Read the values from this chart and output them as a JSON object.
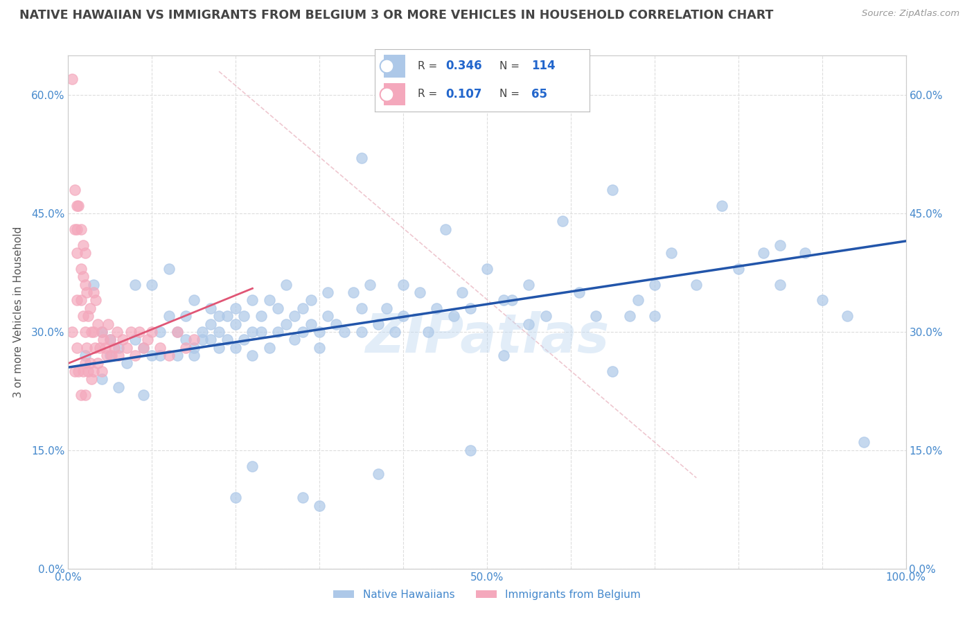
{
  "title": "NATIVE HAWAIIAN VS IMMIGRANTS FROM BELGIUM 3 OR MORE VEHICLES IN HOUSEHOLD CORRELATION CHART",
  "source": "Source: ZipAtlas.com",
  "ylabel": "3 or more Vehicles in Household",
  "xmin": 0.0,
  "xmax": 1.0,
  "ymin": 0.0,
  "ymax": 0.65,
  "xtick_pos": [
    0.0,
    0.1,
    0.2,
    0.3,
    0.4,
    0.5,
    0.6,
    0.7,
    0.8,
    0.9,
    1.0
  ],
  "xtick_labels": [
    "0.0%",
    "",
    "",
    "",
    "",
    "50.0%",
    "",
    "",
    "",
    "",
    "100.0%"
  ],
  "ytick_pos": [
    0.0,
    0.15,
    0.3,
    0.45,
    0.6
  ],
  "ytick_labels": [
    "0.0%",
    "15.0%",
    "30.0%",
    "45.0%",
    "60.0%"
  ],
  "blue_R": "0.346",
  "blue_N": "114",
  "pink_R": "0.107",
  "pink_N": "65",
  "blue_color": "#adc8e8",
  "pink_color": "#f4a8bc",
  "blue_line_color": "#2255aa",
  "pink_line_color": "#e05575",
  "dashed_line_color": "#e8b0bc",
  "watermark": "ZIPatlas",
  "background_color": "#ffffff",
  "grid_color": "#dddddd",
  "title_color": "#444444",
  "axis_label_color": "#555555",
  "tick_label_color": "#4488cc",
  "legend_label_color": "#2266cc",
  "blue_line_x0": 0.0,
  "blue_line_y0": 0.255,
  "blue_line_x1": 1.0,
  "blue_line_y1": 0.415,
  "pink_line_x0": 0.0,
  "pink_line_y0": 0.26,
  "pink_line_x1": 0.22,
  "pink_line_y1": 0.355,
  "dashed_line_x0": 0.18,
  "dashed_line_y0": 0.63,
  "dashed_line_x1": 0.75,
  "dashed_line_y1": 0.115,
  "blue_scatter_x": [
    0.02,
    0.03,
    0.04,
    0.04,
    0.05,
    0.05,
    0.06,
    0.06,
    0.07,
    0.08,
    0.08,
    0.09,
    0.09,
    0.1,
    0.1,
    0.11,
    0.11,
    0.12,
    0.12,
    0.13,
    0.13,
    0.14,
    0.14,
    0.15,
    0.15,
    0.15,
    0.16,
    0.16,
    0.17,
    0.17,
    0.17,
    0.18,
    0.18,
    0.18,
    0.19,
    0.19,
    0.2,
    0.2,
    0.2,
    0.21,
    0.21,
    0.22,
    0.22,
    0.22,
    0.23,
    0.23,
    0.24,
    0.24,
    0.25,
    0.25,
    0.26,
    0.26,
    0.27,
    0.27,
    0.28,
    0.28,
    0.29,
    0.29,
    0.3,
    0.3,
    0.31,
    0.31,
    0.32,
    0.33,
    0.34,
    0.35,
    0.35,
    0.36,
    0.37,
    0.38,
    0.39,
    0.4,
    0.4,
    0.42,
    0.43,
    0.44,
    0.45,
    0.46,
    0.47,
    0.48,
    0.5,
    0.52,
    0.53,
    0.55,
    0.57,
    0.59,
    0.61,
    0.63,
    0.65,
    0.68,
    0.7,
    0.72,
    0.75,
    0.78,
    0.8,
    0.83,
    0.85,
    0.88,
    0.9,
    0.93,
    0.95,
    0.35,
    0.48,
    0.65,
    0.28,
    0.2,
    0.3,
    0.55,
    0.7,
    0.85,
    0.22,
    0.37,
    0.52,
    0.67
  ],
  "blue_scatter_y": [
    0.27,
    0.36,
    0.24,
    0.3,
    0.27,
    0.29,
    0.23,
    0.28,
    0.26,
    0.36,
    0.29,
    0.22,
    0.28,
    0.36,
    0.27,
    0.3,
    0.27,
    0.32,
    0.38,
    0.3,
    0.27,
    0.32,
    0.29,
    0.34,
    0.28,
    0.27,
    0.3,
    0.29,
    0.33,
    0.31,
    0.29,
    0.32,
    0.3,
    0.28,
    0.29,
    0.32,
    0.31,
    0.28,
    0.33,
    0.29,
    0.32,
    0.3,
    0.34,
    0.27,
    0.3,
    0.32,
    0.28,
    0.34,
    0.3,
    0.33,
    0.31,
    0.36,
    0.32,
    0.29,
    0.3,
    0.33,
    0.31,
    0.34,
    0.3,
    0.28,
    0.32,
    0.35,
    0.31,
    0.3,
    0.35,
    0.3,
    0.33,
    0.36,
    0.31,
    0.33,
    0.3,
    0.32,
    0.36,
    0.35,
    0.3,
    0.33,
    0.43,
    0.32,
    0.35,
    0.33,
    0.38,
    0.34,
    0.34,
    0.36,
    0.32,
    0.44,
    0.35,
    0.32,
    0.48,
    0.34,
    0.36,
    0.4,
    0.36,
    0.46,
    0.38,
    0.4,
    0.36,
    0.4,
    0.34,
    0.32,
    0.16,
    0.52,
    0.15,
    0.25,
    0.09,
    0.09,
    0.08,
    0.31,
    0.32,
    0.41,
    0.13,
    0.12,
    0.27,
    0.32
  ],
  "pink_scatter_x": [
    0.005,
    0.005,
    0.008,
    0.008,
    0.008,
    0.01,
    0.01,
    0.01,
    0.01,
    0.01,
    0.012,
    0.012,
    0.015,
    0.015,
    0.015,
    0.015,
    0.018,
    0.018,
    0.018,
    0.018,
    0.02,
    0.02,
    0.02,
    0.02,
    0.02,
    0.022,
    0.022,
    0.024,
    0.024,
    0.026,
    0.026,
    0.028,
    0.028,
    0.03,
    0.03,
    0.03,
    0.032,
    0.033,
    0.035,
    0.035,
    0.038,
    0.04,
    0.04,
    0.042,
    0.044,
    0.046,
    0.048,
    0.05,
    0.052,
    0.055,
    0.058,
    0.06,
    0.065,
    0.07,
    0.075,
    0.08,
    0.085,
    0.09,
    0.095,
    0.1,
    0.11,
    0.12,
    0.13,
    0.14,
    0.15
  ],
  "pink_scatter_y": [
    0.62,
    0.3,
    0.48,
    0.43,
    0.25,
    0.46,
    0.43,
    0.4,
    0.34,
    0.28,
    0.46,
    0.25,
    0.43,
    0.38,
    0.34,
    0.22,
    0.41,
    0.37,
    0.32,
    0.25,
    0.4,
    0.36,
    0.3,
    0.26,
    0.22,
    0.35,
    0.28,
    0.32,
    0.25,
    0.33,
    0.26,
    0.3,
    0.24,
    0.35,
    0.3,
    0.25,
    0.28,
    0.34,
    0.31,
    0.26,
    0.28,
    0.3,
    0.25,
    0.29,
    0.28,
    0.27,
    0.31,
    0.29,
    0.27,
    0.28,
    0.3,
    0.27,
    0.29,
    0.28,
    0.3,
    0.27,
    0.3,
    0.28,
    0.29,
    0.3,
    0.28,
    0.27,
    0.3,
    0.28,
    0.29
  ]
}
